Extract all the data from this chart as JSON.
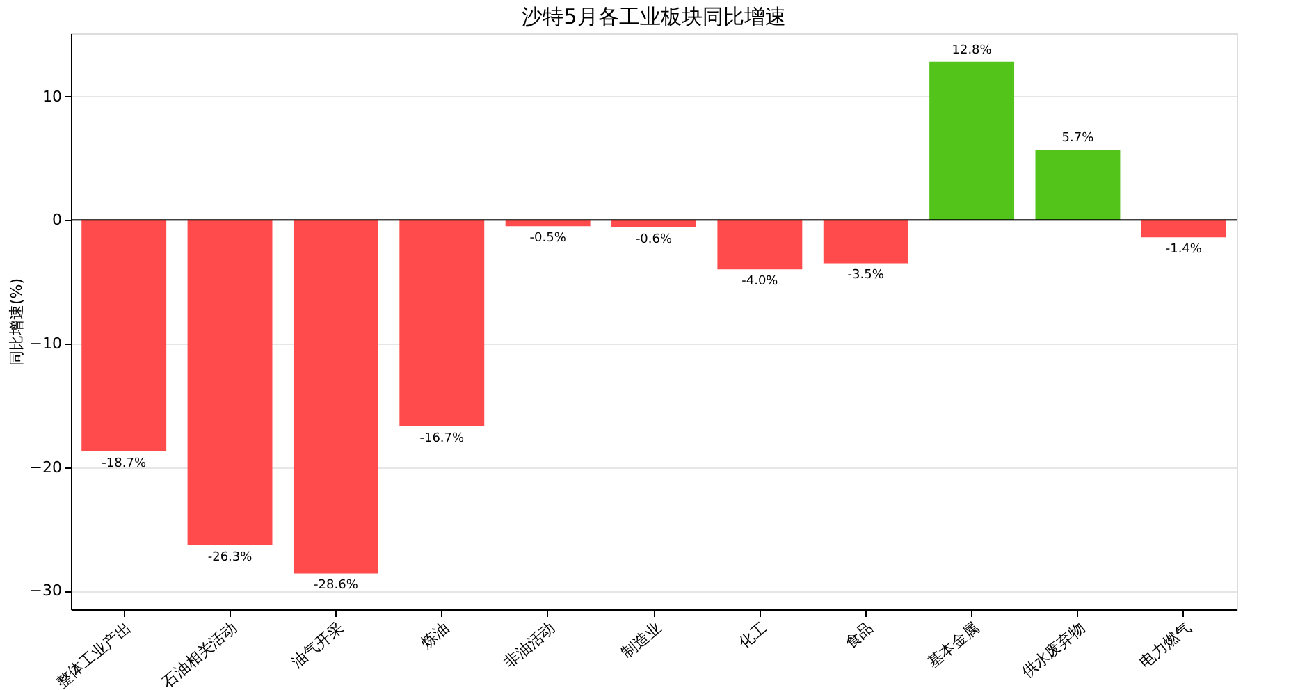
{
  "chart_data": {
    "type": "bar",
    "title": "沙特5月各工业板块同比增速",
    "ylabel": "同比增速(%)",
    "categories": [
      "整体工业产出",
      "石油相关活动",
      "油气开采",
      "炼油",
      "非油活动",
      "制造业",
      "化工",
      "食品",
      "基本金属",
      "供水废弃物",
      "电力燃气"
    ],
    "values": [
      -18.7,
      -26.3,
      -28.6,
      -16.7,
      -0.5,
      -0.6,
      -4.0,
      -3.5,
      12.8,
      5.7,
      -1.4
    ],
    "colors": [
      "#ff4b4b",
      "#ff4b4b",
      "#ff4b4b",
      "#ff4b4b",
      "#ff4b4b",
      "#ff4b4b",
      "#ff4b4b",
      "#ff4b4b",
      "#52c41a",
      "#52c41a",
      "#ff4b4b"
    ],
    "value_labels": [
      "-18.7%",
      "-26.3%",
      "-28.6%",
      "-16.7%",
      "-0.5%",
      "-0.6%",
      "-4.0%",
      "-3.5%",
      "12.8%",
      "5.7%",
      "-1.4%"
    ],
    "ylim": [
      -31.5,
      15.1
    ],
    "yticks": [
      -30,
      -20,
      -10,
      0,
      10
    ],
    "grid": "y",
    "ref_lines": [
      {
        "axis": "y",
        "value": 0,
        "color": "#000000"
      }
    ]
  }
}
